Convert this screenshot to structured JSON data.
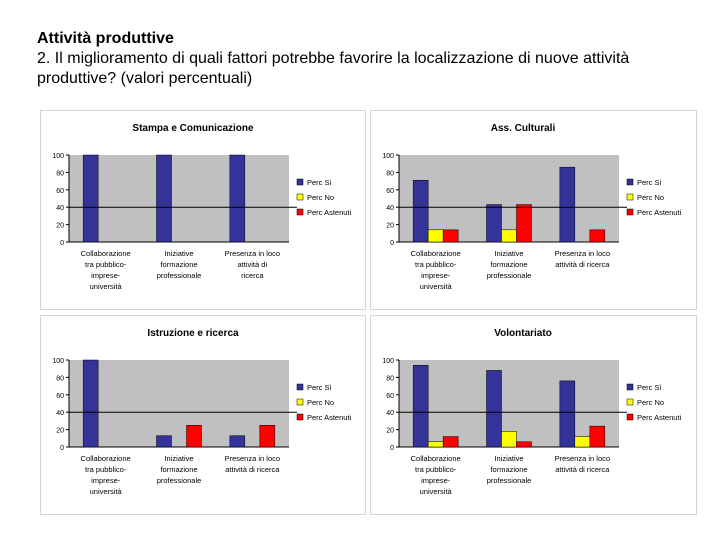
{
  "slide": {
    "title": "Attività produttive",
    "question": "2. Il miglioramento di quali fattori potrebbe favorire la localizzazione di nuove attività produttive? (valori percentuali)"
  },
  "colors": {
    "plot_area": "#c0c0c0",
    "series": [
      "#333399",
      "#ffff00",
      "#ff0000"
    ]
  },
  "chart_data": [
    {
      "type": "bar",
      "title": "Stampa e Comunicazione",
      "categories": [
        [
          "Collaborazione",
          "tra pubblico-",
          "imprese-",
          "università"
        ],
        [
          "Iniziative",
          "formazione",
          "professionale"
        ],
        [
          "Presenza in loco",
          "attività di",
          "ricerca"
        ]
      ],
      "series": [
        {
          "name": "Perc Sì",
          "values": [
            100,
            100,
            100
          ]
        },
        {
          "name": "Perc No",
          "values": [
            0,
            0,
            0
          ]
        },
        {
          "name": "Perc Astenuti",
          "values": [
            0,
            0,
            0
          ]
        }
      ],
      "ylim": [
        0,
        100
      ],
      "yticks": [
        0,
        20,
        40,
        60,
        80,
        100
      ],
      "legend": "right"
    },
    {
      "type": "bar",
      "title": "Ass. Culturali",
      "categories": [
        [
          "Collaborazione",
          "tra pubblico-",
          "imprese-",
          "università"
        ],
        [
          "Iniziative",
          "formazione",
          "professionale"
        ],
        [
          "Presenza in loco",
          "attività di ricerca"
        ]
      ],
      "series": [
        {
          "name": "Perc Sì",
          "values": [
            71,
            43,
            86
          ]
        },
        {
          "name": "Perc No",
          "values": [
            14,
            14,
            0
          ]
        },
        {
          "name": "Perc Astenuti",
          "values": [
            14,
            43,
            14
          ]
        }
      ],
      "ylim": [
        0,
        100
      ],
      "yticks": [
        0,
        20,
        40,
        60,
        80,
        100
      ],
      "legend": "right"
    },
    {
      "type": "bar",
      "title": "Istruzione e ricerca",
      "categories": [
        [
          "Collaborazione",
          "tra pubblico-",
          "imprese-",
          "università"
        ],
        [
          "Iniziative",
          "formazione",
          "professionale"
        ],
        [
          "Presenza in loco",
          "attività di ricerca"
        ]
      ],
      "series": [
        {
          "name": "Perc Sì",
          "values": [
            100,
            13,
            13
          ]
        },
        {
          "name": "Perc No",
          "values": [
            0,
            0,
            0
          ]
        },
        {
          "name": "Perc Astenuti",
          "values": [
            0,
            25,
            25
          ]
        }
      ],
      "ylim": [
        0,
        100
      ],
      "yticks": [
        0,
        20,
        40,
        60,
        80,
        100
      ],
      "legend": "right"
    },
    {
      "type": "bar",
      "title": "Volontariato",
      "categories": [
        [
          "Collaborazione",
          "tra pubblico-",
          "imprese-",
          "università"
        ],
        [
          "Iniziative",
          "formazione",
          "professionale"
        ],
        [
          "Presenza in loco",
          "attività di ricerca"
        ]
      ],
      "series": [
        {
          "name": "Perc Sì",
          "values": [
            94,
            88,
            76
          ]
        },
        {
          "name": "Perc No",
          "values": [
            6,
            18,
            12
          ]
        },
        {
          "name": "Perc Astenuti",
          "values": [
            12,
            6,
            24
          ]
        }
      ],
      "ylim": [
        0,
        100
      ],
      "yticks": [
        0,
        20,
        40,
        60,
        80,
        100
      ],
      "legend": "right"
    }
  ]
}
